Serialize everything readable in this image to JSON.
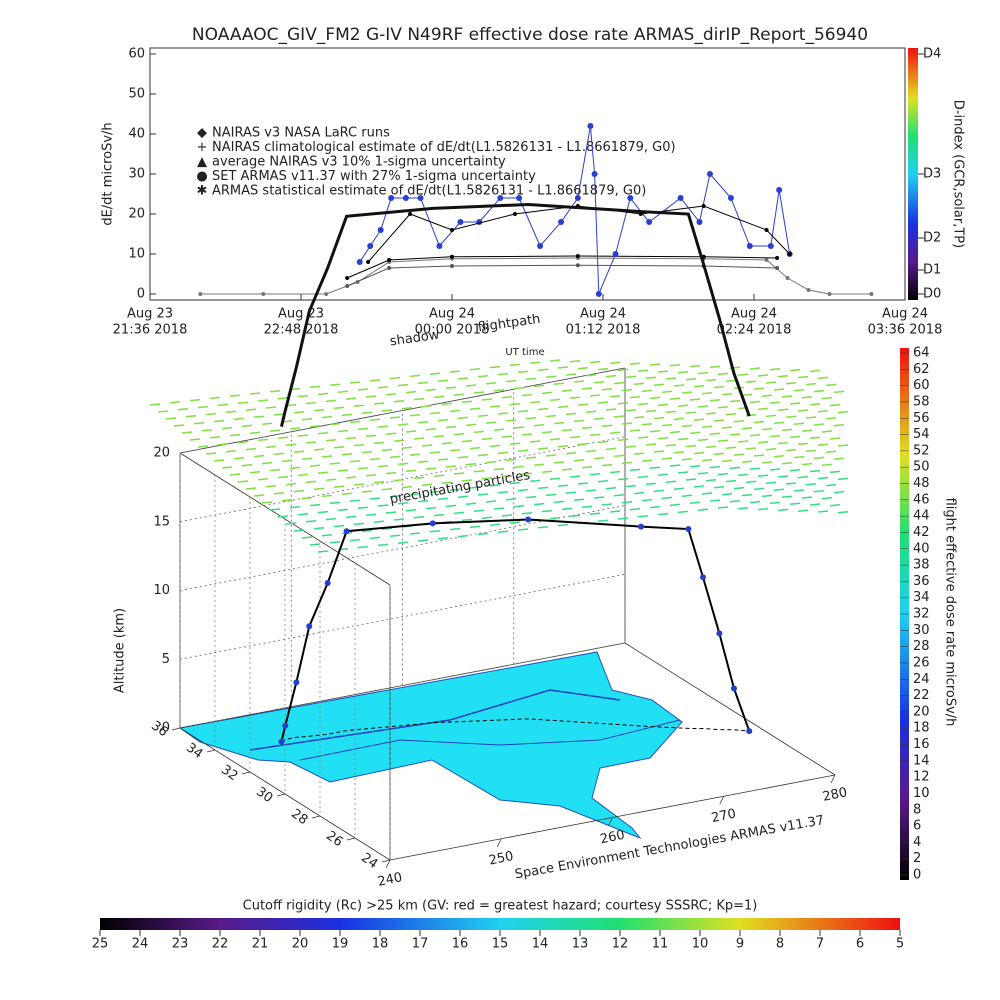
{
  "chart_data": [
    {
      "type": "line",
      "title": "NOAAAOC_GIV_FM2 G-IV    N49RF   effective dose rate ARMAS_dirIP_Report_56940",
      "ylabel": "dE/dt microSv/h",
      "xlabel": "UT time",
      "xlim": [
        "2018-08-23T21:36",
        "2018-08-24T03:36"
      ],
      "xticks": [
        {
          "value": "2018-08-23T21:36",
          "label": [
            "Aug 23",
            "21:36 2018"
          ]
        },
        {
          "value": "2018-08-23T22:48",
          "label": [
            "Aug 23",
            "22:48 2018"
          ]
        },
        {
          "value": "2018-08-24T00:00",
          "label": [
            "Aug 24",
            "00:00 2018"
          ]
        },
        {
          "value": "2018-08-24T01:12",
          "label": [
            "Aug 24",
            "01:12 2018"
          ]
        },
        {
          "value": "2018-08-24T02:24",
          "label": [
            "Aug 24",
            "02:24 2018"
          ]
        },
        {
          "value": "2018-08-24T03:36",
          "label": [
            "Aug 24",
            "03:36 2018"
          ]
        }
      ],
      "ylim": [
        -1.5,
        61.5
      ],
      "yticks": [
        0,
        10,
        20,
        30,
        40,
        50,
        60
      ],
      "y2label": "D-index (GCR,solar,TP)",
      "y2lim": [
        -1.5,
        61.5
      ],
      "y2ticks": [
        {
          "value": 0,
          "label": "D0"
        },
        {
          "value": 6,
          "label": "D1"
        },
        {
          "value": 14,
          "label": "D2"
        },
        {
          "value": 30,
          "label": "D3"
        },
        {
          "value": 60,
          "label": "D4"
        }
      ],
      "legend": "upper left",
      "series": [
        {
          "name": "NAIRAS v3 NASA LaRC runs",
          "color": "#777777",
          "x": [
            "2018-08-23T22:00",
            "2018-08-23T22:30",
            "2018-08-23T23:00",
            "2018-08-23T23:15",
            "2018-08-23T23:30",
            "2018-08-24T00:00",
            "2018-08-24T01:00",
            "2018-08-24T02:00",
            "2018-08-24T02:30",
            "2018-08-24T02:40",
            "2018-08-24T02:50",
            "2018-08-24T03:00",
            "2018-08-24T03:20"
          ],
          "values": [
            0,
            0,
            0,
            3,
            8,
            8.8,
            9,
            8.8,
            8.5,
            4,
            1,
            0,
            0
          ]
        },
        {
          "name": "NAIRAS climatological estimate of dE/dt(L1.5826131 - L1.8661879, G0)",
          "color": "#000000",
          "x": [
            "2018-08-23T23:10",
            "2018-08-23T23:30",
            "2018-08-24T00:00",
            "2018-08-24T01:00",
            "2018-08-24T02:00",
            "2018-08-24T02:35"
          ],
          "values": [
            4,
            8.5,
            9.3,
            9.5,
            9.3,
            9
          ]
        },
        {
          "name": "average NAIRAS v3 10% 1-sigma uncertainty",
          "color": "#555555",
          "x": [
            "2018-08-23T23:10",
            "2018-08-23T23:30",
            "2018-08-24T00:00",
            "2018-08-24T01:00",
            "2018-08-24T02:00",
            "2018-08-24T02:35"
          ],
          "values": [
            2,
            6.5,
            7,
            7.2,
            7,
            6.5
          ]
        },
        {
          "name": "SET ARMAS v11.37 with 27% 1-sigma uncertainty",
          "color": "#2a3fd0",
          "x": [
            "2018-08-23T23:16",
            "2018-08-23T23:21",
            "2018-08-23T23:26",
            "2018-08-23T23:31",
            "2018-08-23T23:38",
            "2018-08-23T23:45",
            "2018-08-23T23:54",
            "2018-08-24T00:04",
            "2018-08-24T00:13",
            "2018-08-24T00:23",
            "2018-08-24T00:32",
            "2018-08-24T00:42",
            "2018-08-24T00:52",
            "2018-08-24T01:00",
            "2018-08-24T01:06",
            "2018-08-24T01:08",
            "2018-08-24T01:10",
            "2018-08-24T01:18",
            "2018-08-24T01:25",
            "2018-08-24T01:34",
            "2018-08-24T01:49",
            "2018-08-24T01:58",
            "2018-08-24T02:03",
            "2018-08-24T02:13",
            "2018-08-24T02:22",
            "2018-08-24T02:32",
            "2018-08-24T02:36",
            "2018-08-24T02:41"
          ],
          "values": [
            8,
            12,
            16,
            24,
            24,
            24,
            12,
            18,
            18,
            24,
            24,
            12,
            18,
            24,
            42,
            30,
            0,
            10,
            24,
            18,
            24,
            18,
            30,
            24,
            12,
            12,
            26,
            10
          ]
        },
        {
          "name": "ARMAS statistical estimate of dE/dt(L1.5826131 - L1.8661879, G0)",
          "color": "#000000",
          "x": [
            "2018-08-23T23:20",
            "2018-08-23T23:40",
            "2018-08-24T00:00",
            "2018-08-24T00:30",
            "2018-08-24T01:00",
            "2018-08-24T01:30",
            "2018-08-24T02:00",
            "2018-08-24T02:30",
            "2018-08-24T02:41"
          ],
          "values": [
            8,
            20,
            16,
            20,
            22,
            20,
            22,
            16,
            10
          ]
        }
      ]
    },
    {
      "type": "flight3d",
      "annotations": [
        "shadow",
        "flightpath",
        "precipitating particles"
      ],
      "zlabel": "Altitude (km)",
      "zlim": [
        0,
        20
      ],
      "zticks": [
        0,
        5,
        10,
        15,
        20
      ],
      "latlim": [
        24,
        36
      ],
      "latticks": [
        24,
        26,
        28,
        30,
        32,
        34,
        36
      ],
      "lonlim": [
        240,
        280
      ],
      "lonticks": [
        240,
        250,
        260,
        270,
        280
      ],
      "credit": "Space Environment Technologies ARMAS v11.37",
      "lon": [
        245.5,
        246,
        247,
        248,
        249.5,
        251.2,
        258,
        265,
        272,
        275,
        276,
        277,
        278,
        278.9
      ],
      "lat": [
        33.7,
        33.8,
        33.8,
        33.7,
        33.6,
        33.6,
        33,
        32,
        30,
        29.2,
        29,
        28.7,
        28.5,
        28.2
      ],
      "alt": [
        0,
        1,
        4,
        8,
        11,
        14.5,
        14.5,
        14.5,
        14.5,
        14.5,
        11,
        7,
        3,
        0
      ]
    },
    {
      "type": "colorbar",
      "orientation": "vertical",
      "label": "flight effective dose rate microSv/h",
      "lim": [
        0,
        64
      ],
      "ticks": [
        0,
        2,
        4,
        6,
        8,
        10,
        12,
        14,
        16,
        18,
        20,
        22,
        24,
        26,
        28,
        30,
        32,
        34,
        36,
        38,
        40,
        42,
        44,
        46,
        48,
        50,
        52,
        54,
        56,
        58,
        60,
        62,
        64
      ]
    },
    {
      "type": "colorbar",
      "orientation": "horizontal",
      "label": "Cutoff rigidity (Rc) >25 km (GV: red = greatest hazard; courtesy SSSRC; Kp=1)",
      "lim": [
        25,
        5
      ],
      "ticks": [
        25,
        24,
        23,
        22,
        21,
        20,
        19,
        18,
        17,
        16,
        15,
        14,
        13,
        12,
        11,
        10,
        9,
        8,
        7,
        6,
        5
      ]
    }
  ]
}
